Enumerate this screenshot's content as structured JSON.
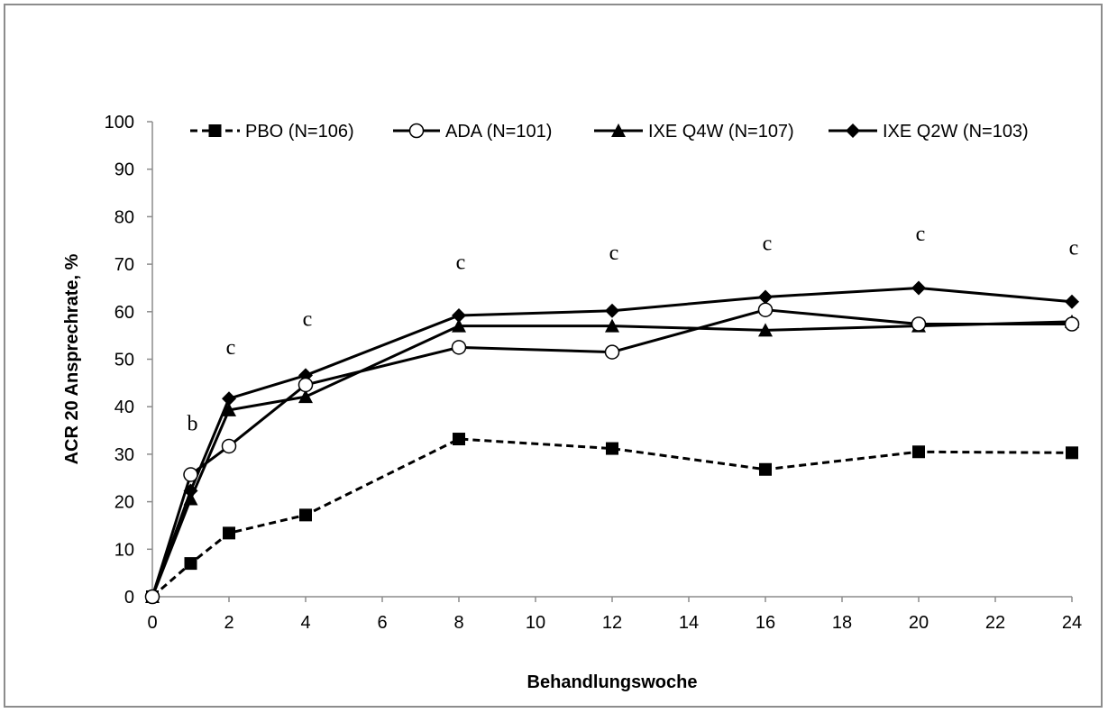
{
  "chart_data": {
    "type": "line",
    "xlabel": "Behandlungswoche",
    "ylabel": "ACR 20 Ansprechrate, %",
    "xlim": [
      0,
      24
    ],
    "ylim": [
      0,
      100
    ],
    "x_ticks": [
      0,
      2,
      4,
      6,
      8,
      10,
      12,
      14,
      16,
      18,
      20,
      22,
      24
    ],
    "y_ticks": [
      0,
      10,
      20,
      30,
      40,
      50,
      60,
      70,
      80,
      90,
      100
    ],
    "grid": false,
    "legend_position": "top",
    "series": [
      {
        "name": "PBO (N=106)",
        "marker": "square",
        "line_style": "dashed",
        "x": [
          0,
          1,
          2,
          4,
          8,
          12,
          16,
          20,
          24
        ],
        "values": [
          0,
          7,
          13.4,
          17.2,
          33.2,
          31.2,
          26.8,
          30.5,
          30.3
        ]
      },
      {
        "name": "ADA (N=101)",
        "marker": "circle-open",
        "line_style": "solid",
        "x": [
          0,
          1,
          2,
          4,
          8,
          12,
          16,
          20,
          24
        ],
        "values": [
          0,
          25.7,
          31.7,
          44.6,
          52.5,
          51.5,
          60.4,
          57.4,
          57.4
        ]
      },
      {
        "name": "IXE Q4W (N=107)",
        "marker": "triangle",
        "line_style": "solid",
        "x": [
          0,
          1,
          2,
          4,
          8,
          12,
          16,
          20,
          24
        ],
        "values": [
          0,
          20.6,
          39.3,
          42.1,
          57,
          57,
          56.1,
          57,
          57.9
        ]
      },
      {
        "name": "IXE Q2W (N=103)",
        "marker": "diamond",
        "line_style": "solid",
        "x": [
          0,
          1,
          2,
          4,
          8,
          12,
          16,
          20,
          24
        ],
        "values": [
          0,
          22.3,
          41.7,
          46.6,
          59.2,
          60.2,
          63.1,
          65,
          62.1
        ]
      }
    ],
    "annotations": [
      {
        "text": "b",
        "x": 1,
        "y": 35
      },
      {
        "text": "c",
        "x": 2,
        "y": 51
      },
      {
        "text": "c",
        "x": 4,
        "y": 57
      },
      {
        "text": "c",
        "x": 8,
        "y": 69
      },
      {
        "text": "c",
        "x": 12,
        "y": 71
      },
      {
        "text": "c",
        "x": 16,
        "y": 73
      },
      {
        "text": "c",
        "x": 20,
        "y": 75
      },
      {
        "text": "c",
        "x": 24,
        "y": 72
      }
    ]
  }
}
